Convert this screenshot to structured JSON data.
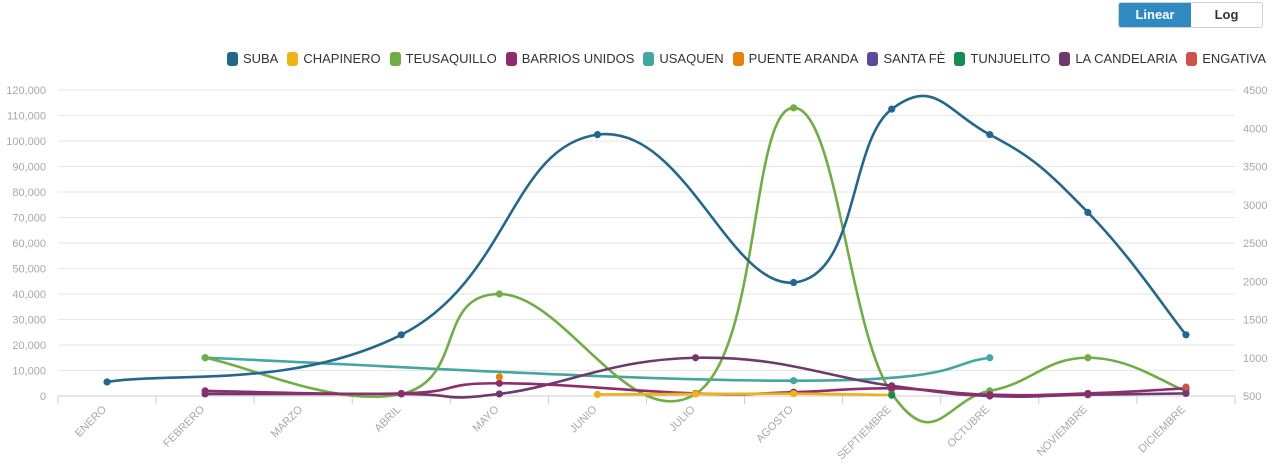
{
  "scale_toggle": {
    "linear_label": "Linear",
    "log_label": "Log",
    "selected": "Linear"
  },
  "chart_data": {
    "type": "line",
    "categories": [
      "ENERO",
      "FEBRERO",
      "MARZO",
      "ABRIL",
      "MAYO",
      "JUNIO",
      "JULIO",
      "AGOSTO",
      "SEPTIEMBRE",
      "OCTUBRE",
      "NOVIEMBRE",
      "DICIEMBRE"
    ],
    "ylim_left": [
      0,
      120000
    ],
    "yticks_left": [
      "0",
      "10,000",
      "20,000",
      "30,000",
      "40,000",
      "50,000",
      "60,000",
      "70,000",
      "80,000",
      "90,000",
      "100,000",
      "110,000",
      "120,000"
    ],
    "ylim_right": [
      500,
      4500
    ],
    "yticks_right": [
      "500",
      "1000",
      "1500",
      "2000",
      "2500",
      "3000",
      "3500",
      "4000",
      "4500"
    ],
    "grid": true,
    "legend_position": "top-right",
    "series": [
      {
        "name": "SUBA",
        "color": "#24678d",
        "values": [
          5500,
          null,
          null,
          24000,
          null,
          102500,
          null,
          44500,
          112500,
          102500,
          72000,
          24000
        ]
      },
      {
        "name": "CHAPINERO",
        "color": "#f0b316",
        "values": [
          null,
          null,
          null,
          null,
          null,
          600,
          800,
          900,
          400,
          null,
          null,
          null
        ]
      },
      {
        "name": "TEUSAQUILLO",
        "color": "#70ad47",
        "values": [
          null,
          15000,
          null,
          800,
          40000,
          null,
          800,
          113000,
          1000,
          2000,
          15000,
          2000
        ]
      },
      {
        "name": "BARRIOS UNIDOS",
        "color": "#8e2c6e",
        "values": [
          null,
          2000,
          null,
          1000,
          5000,
          null,
          1000,
          1500,
          3000,
          500,
          1000,
          3000
        ]
      },
      {
        "name": "USAQUEN",
        "color": "#42a6a2",
        "values": [
          null,
          15000,
          null,
          null,
          null,
          null,
          null,
          6000,
          null,
          15000,
          null,
          null
        ]
      },
      {
        "name": "PUENTE ARANDA",
        "color": "#e5840b",
        "values": [
          null,
          null,
          null,
          null,
          7500,
          null,
          null,
          null,
          null,
          null,
          null,
          null
        ]
      },
      {
        "name": "SANTA FÈ",
        "color": "#5b4a9b",
        "values": [
          null,
          null,
          null,
          null,
          null,
          null,
          null,
          null,
          null,
          null,
          null,
          null
        ]
      },
      {
        "name": "TUNJUELITO",
        "color": "#138c58",
        "values": [
          null,
          null,
          null,
          null,
          null,
          null,
          null,
          null,
          300,
          null,
          null,
          null
        ]
      },
      {
        "name": "LA CANDELARIA",
        "color": "#6e3a6e",
        "values": [
          null,
          800,
          null,
          800,
          800,
          null,
          15000,
          null,
          4000,
          0,
          500,
          1000
        ]
      },
      {
        "name": "ENGATIVA",
        "color": "#d0504b",
        "values": [
          null,
          null,
          null,
          null,
          null,
          null,
          null,
          null,
          null,
          null,
          null,
          3500
        ]
      }
    ]
  }
}
